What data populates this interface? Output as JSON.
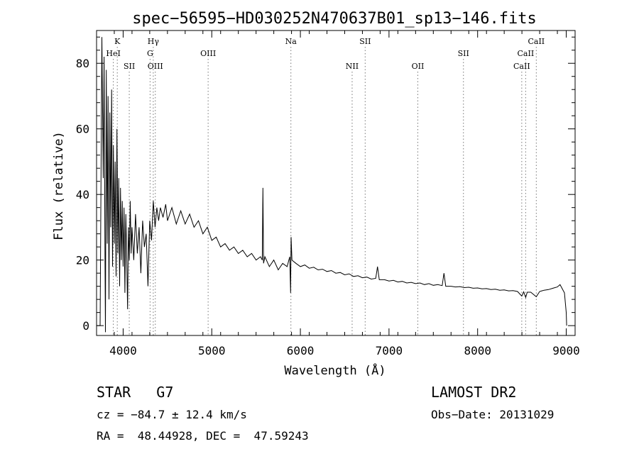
{
  "chart_data": {
    "type": "line",
    "title": "spec−56595−HD030252N470637B01_sp13−146.fits",
    "xlabel": "Wavelength (Å)",
    "ylabel": "Flux (relative)",
    "xlim": [
      3700,
      9100
    ],
    "ylim": [
      -3,
      90
    ],
    "xticks": [
      4000,
      5000,
      6000,
      7000,
      8000,
      9000
    ],
    "yticks": [
      0,
      20,
      40,
      60,
      80
    ],
    "line_color": "#000000",
    "series": [
      {
        "values_xy": [
          [
            3700,
            0
          ],
          [
            3740,
            0
          ],
          [
            3760,
            88
          ],
          [
            3775,
            45
          ],
          [
            3785,
            82
          ],
          [
            3795,
            20
          ],
          [
            3800,
            -2
          ],
          [
            3810,
            78
          ],
          [
            3820,
            25
          ],
          [
            3830,
            70
          ],
          [
            3840,
            8
          ],
          [
            3850,
            65
          ],
          [
            3860,
            30
          ],
          [
            3870,
            72
          ],
          [
            3880,
            18
          ],
          [
            3890,
            55
          ],
          [
            3900,
            25
          ],
          [
            3910,
            50
          ],
          [
            3920,
            15
          ],
          [
            3930,
            60
          ],
          [
            3940,
            22
          ],
          [
            3950,
            45
          ],
          [
            3960,
            12
          ],
          [
            3970,
            42
          ],
          [
            3980,
            20
          ],
          [
            3990,
            38
          ],
          [
            4000,
            18
          ],
          [
            4010,
            36
          ],
          [
            4020,
            10
          ],
          [
            4030,
            34
          ],
          [
            4040,
            22
          ],
          [
            4050,
            5
          ],
          [
            4060,
            30
          ],
          [
            4070,
            20
          ],
          [
            4080,
            38
          ],
          [
            4090,
            22
          ],
          [
            4100,
            30
          ],
          [
            4120,
            20
          ],
          [
            4140,
            34
          ],
          [
            4160,
            22
          ],
          [
            4180,
            30
          ],
          [
            4200,
            16
          ],
          [
            4220,
            32
          ],
          [
            4240,
            24
          ],
          [
            4260,
            28
          ],
          [
            4280,
            12
          ],
          [
            4300,
            32
          ],
          [
            4320,
            26
          ],
          [
            4340,
            38
          ],
          [
            4360,
            30
          ],
          [
            4380,
            36
          ],
          [
            4400,
            32
          ],
          [
            4420,
            36
          ],
          [
            4450,
            33
          ],
          [
            4480,
            37
          ],
          [
            4500,
            32
          ],
          [
            4550,
            36
          ],
          [
            4600,
            31
          ],
          [
            4650,
            35
          ],
          [
            4700,
            31
          ],
          [
            4750,
            34
          ],
          [
            4800,
            30
          ],
          [
            4850,
            32
          ],
          [
            4900,
            28
          ],
          [
            4950,
            30
          ],
          [
            5000,
            26
          ],
          [
            5050,
            27
          ],
          [
            5100,
            24
          ],
          [
            5150,
            25
          ],
          [
            5200,
            23
          ],
          [
            5250,
            24
          ],
          [
            5300,
            22
          ],
          [
            5350,
            23
          ],
          [
            5400,
            21
          ],
          [
            5450,
            22
          ],
          [
            5500,
            20
          ],
          [
            5550,
            21
          ],
          [
            5570,
            20
          ],
          [
            5577,
            42
          ],
          [
            5584,
            19
          ],
          [
            5600,
            21
          ],
          [
            5650,
            18
          ],
          [
            5700,
            20
          ],
          [
            5750,
            17
          ],
          [
            5800,
            19
          ],
          [
            5850,
            18
          ],
          [
            5880,
            21
          ],
          [
            5890,
            10
          ],
          [
            5895,
            27
          ],
          [
            5905,
            20
          ],
          [
            5950,
            19
          ],
          [
            6000,
            18
          ],
          [
            6050,
            18.5
          ],
          [
            6100,
            17.5
          ],
          [
            6150,
            17.8
          ],
          [
            6200,
            17
          ],
          [
            6250,
            17.2
          ],
          [
            6300,
            16.5
          ],
          [
            6350,
            16.8
          ],
          [
            6400,
            16
          ],
          [
            6450,
            16.2
          ],
          [
            6500,
            15.5
          ],
          [
            6550,
            15.8
          ],
          [
            6600,
            15
          ],
          [
            6650,
            15.2
          ],
          [
            6700,
            14.6
          ],
          [
            6750,
            14.8
          ],
          [
            6800,
            14.2
          ],
          [
            6850,
            14.4
          ],
          [
            6870,
            18
          ],
          [
            6890,
            14
          ],
          [
            6950,
            14
          ],
          [
            7000,
            13.6
          ],
          [
            7050,
            13.8
          ],
          [
            7100,
            13.3
          ],
          [
            7150,
            13.5
          ],
          [
            7200,
            13
          ],
          [
            7250,
            13.2
          ],
          [
            7300,
            12.8
          ],
          [
            7350,
            13
          ],
          [
            7400,
            12.5
          ],
          [
            7450,
            12.8
          ],
          [
            7500,
            12.3
          ],
          [
            7550,
            12.5
          ],
          [
            7600,
            12.2
          ],
          [
            7620,
            16
          ],
          [
            7640,
            12
          ],
          [
            7700,
            12
          ],
          [
            7750,
            11.8
          ],
          [
            7800,
            11.9
          ],
          [
            7850,
            11.6
          ],
          [
            7900,
            11.7
          ],
          [
            7950,
            11.4
          ],
          [
            8000,
            11.5
          ],
          [
            8050,
            11.2
          ],
          [
            8100,
            11.3
          ],
          [
            8150,
            11
          ],
          [
            8200,
            11.1
          ],
          [
            8250,
            10.8
          ],
          [
            8300,
            10.9
          ],
          [
            8350,
            10.6
          ],
          [
            8400,
            10.7
          ],
          [
            8450,
            10.4
          ],
          [
            8498,
            9
          ],
          [
            8520,
            10.3
          ],
          [
            8542,
            8.6
          ],
          [
            8560,
            10.2
          ],
          [
            8600,
            10.2
          ],
          [
            8662,
            8.8
          ],
          [
            8700,
            10.4
          ],
          [
            8750,
            10.8
          ],
          [
            8800,
            11
          ],
          [
            8850,
            11.4
          ],
          [
            8900,
            11.8
          ],
          [
            8930,
            12.5
          ],
          [
            8950,
            11.5
          ],
          [
            8980,
            10
          ],
          [
            9000,
            4
          ],
          [
            9005,
            0
          ]
        ]
      }
    ],
    "line_markers": [
      {
        "label": "K",
        "x": 3934,
        "row": 0
      },
      {
        "label": "HeI",
        "x": 3889,
        "row": 1
      },
      {
        "label": "SII",
        "x": 4069,
        "row": 2
      },
      {
        "label": "Hγ",
        "x": 4340,
        "row": 0
      },
      {
        "label": "G",
        "x": 4304,
        "row": 1
      },
      {
        "label": "OIII",
        "x": 4363,
        "row": 2
      },
      {
        "label": "OIII",
        "x": 4959,
        "row": 1
      },
      {
        "label": "Na",
        "x": 5893,
        "row": 0
      },
      {
        "label": "SII",
        "x": 6731,
        "row": 0
      },
      {
        "label": "NII",
        "x": 6584,
        "row": 2
      },
      {
        "label": "OII",
        "x": 7325,
        "row": 2
      },
      {
        "label": "SII",
        "x": 7840,
        "row": 1
      },
      {
        "label": "CaII",
        "x": 8662,
        "row": 0
      },
      {
        "label": "CaII",
        "x": 8542,
        "row": 1
      },
      {
        "label": "CaII",
        "x": 8498,
        "row": 2
      }
    ]
  },
  "info": {
    "object_class": "STAR",
    "subclass": "G7",
    "survey": "LAMOST DR2",
    "cz": "cz = −84.7 ± 12.4 km/s",
    "obs_date": "Obs−Date: 20131029",
    "radec": "RA =  48.44928, DEC =  47.59243"
  }
}
